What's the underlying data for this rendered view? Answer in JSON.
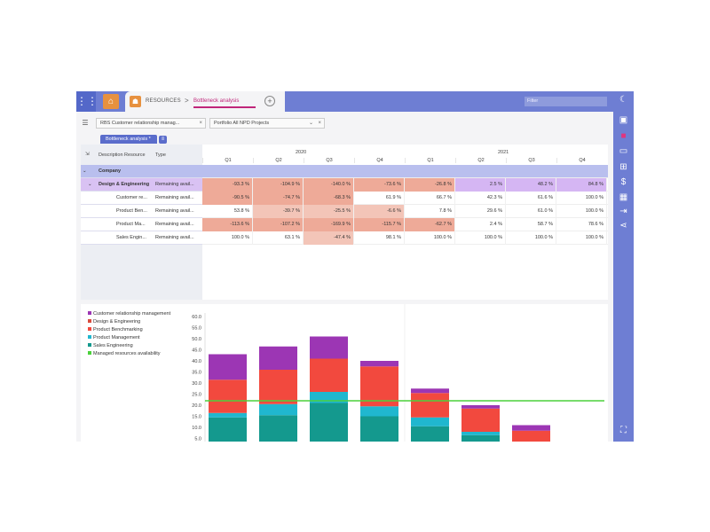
{
  "header": {
    "breadcrumb_root": "RESOURCES",
    "breadcrumb_sep": ">",
    "active_tab": "Bottleneck analysis",
    "filter_placeholder": "Filter"
  },
  "toolbar": {
    "rbs_label": "RBS",
    "rbs_value": "Customer relationship manag...",
    "portfolio_label": "Portfolio",
    "portfolio_value": "All NPD Projects",
    "close_glyph": "×",
    "caret_glyph": "⌄"
  },
  "view_tab": {
    "label": "Bottleneck analysis *"
  },
  "table": {
    "columns": [
      "Description Resource",
      "Type"
    ],
    "years": [
      {
        "label": "2020"
      },
      {
        "label": "2021"
      }
    ],
    "quarters": [
      "Q1",
      "Q2",
      "Q3",
      "Q4",
      "Q1",
      "Q2",
      "Q3",
      "Q4"
    ],
    "group": {
      "label": "Company"
    },
    "rows": [
      {
        "name": "Design & Engineering",
        "type": "Remaining avail...",
        "bold": true,
        "values": [
          "-93.3 %",
          "-104.9 %",
          "-140.0 %",
          "-73.6 %",
          "-26.8 %",
          "2.5 %",
          "48.2 %",
          "84.8 %"
        ]
      },
      {
        "name": "Customer re...",
        "type": "Remaining avail...",
        "bold": false,
        "values": [
          "-90.5 %",
          "-74.7 %",
          "-68.3 %",
          "61.9 %",
          "66.7 %",
          "42.3 %",
          "61.6 %",
          "100.0 %"
        ]
      },
      {
        "name": "Product Ben...",
        "type": "Remaining avail...",
        "bold": false,
        "values": [
          "53.8 %",
          "-39.7 %",
          "-25.5 %",
          "-6.6 %",
          "7.8 %",
          "29.6 %",
          "61.0 %",
          "100.0 %"
        ]
      },
      {
        "name": "Product Ma...",
        "type": "Remaining avail...",
        "bold": false,
        "values": [
          "-113.6 %",
          "-107.2 %",
          "-169.9 %",
          "-115.7 %",
          "-62.7 %",
          "2.4 %",
          "58.7 %",
          "78.6 %"
        ]
      },
      {
        "name": "Sales Engin...",
        "type": "Remaining avail...",
        "bold": false,
        "values": [
          "100.0 %",
          "63.1 %",
          "-47.4 %",
          "98.1 %",
          "100.0 %",
          "100.0 %",
          "100.0 %",
          "100.0 %"
        ]
      }
    ]
  },
  "colors": {
    "accent": "#6e7ed3",
    "negative": "#f3c5b8",
    "negative_strong": "#eeaa98",
    "positive_row": "#d5b6f3",
    "group_row": "#b9bfee"
  },
  "chart_data": {
    "type": "bar",
    "stacked": true,
    "categories": [
      "Q1",
      "Q2",
      "Q3",
      "Q4",
      "Q1",
      "Q2",
      "Q3",
      "Q4"
    ],
    "series": [
      {
        "name": "Sales Engineering",
        "color": "#14998e",
        "values": [
          14.5,
          15.5,
          21.0,
          15.0,
          10.5,
          6.5,
          2.0,
          0
        ]
      },
      {
        "name": "Product Management",
        "color": "#20b7cf",
        "values": [
          2.0,
          5.0,
          5.0,
          4.5,
          4.0,
          1.5,
          0.5,
          0
        ]
      },
      {
        "name": "Product Benchmarking",
        "color": "#f2493e",
        "values": [
          15.0,
          15.5,
          15.0,
          18.0,
          11.0,
          10.5,
          6.0,
          0
        ]
      },
      {
        "name": "Customer relationship management",
        "color": "#9c36b4",
        "values": [
          11.5,
          10.5,
          10.0,
          2.5,
          2.0,
          1.5,
          2.5,
          0
        ]
      }
    ],
    "line": {
      "name": "Managed resources availability",
      "color": "#4bd13b",
      "value": 22.0
    },
    "legend": [
      {
        "name": "Customer relationship management",
        "color": "#9c36b4"
      },
      {
        "name": "Design & Engineering",
        "color": "#d94c3e"
      },
      {
        "name": "Product Benchmarking",
        "color": "#f2493e"
      },
      {
        "name": "Product Management",
        "color": "#20b7cf"
      },
      {
        "name": "Sales Engineering",
        "color": "#14998e"
      },
      {
        "name": "Managed resources availability",
        "color": "#4bd13b"
      }
    ],
    "yticks": [
      "60.0",
      "55.0",
      "50.0",
      "45.0",
      "40.0",
      "35.0",
      "30.0",
      "25.0",
      "20.0",
      "15.0",
      "10.0",
      "5.0"
    ],
    "ylim": [
      0,
      60
    ],
    "legend_position": "left"
  },
  "sidebar": {
    "icons": [
      "moon-icon",
      "save-icon",
      "book-icon",
      "screen-icon",
      "excel-icon",
      "dollar-icon",
      "calendar-icon",
      "export-icon",
      "share-icon",
      "fullscreen-icon"
    ]
  }
}
